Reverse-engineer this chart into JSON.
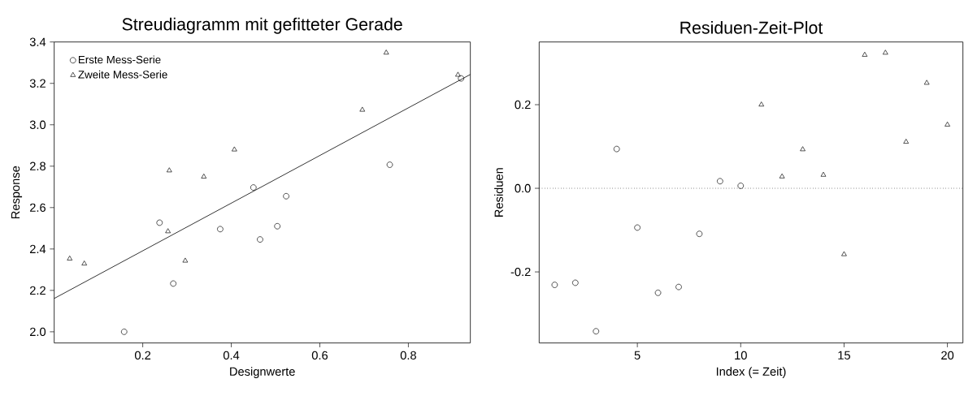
{
  "chart_data": [
    {
      "type": "scatter",
      "title": "Streudiagramm mit gefitteter Gerade",
      "xlabel": "Designwerte",
      "ylabel": "Response",
      "xlim": [
        0.0,
        0.94
      ],
      "ylim": [
        1.946,
        3.4
      ],
      "xticks": [
        0.2,
        0.4,
        0.6,
        0.8
      ],
      "yticks": [
        {
          "value": 2.0,
          "label": "2.0"
        },
        {
          "value": 2.2,
          "label": "2.2"
        },
        {
          "value": 2.4,
          "label": "2.4"
        },
        {
          "value": 2.6,
          "label": "2.6"
        },
        {
          "value": 2.8,
          "label": "2.8"
        },
        {
          "value": 3.0,
          "label": "3.0"
        },
        {
          "value": 3.2,
          "label": "3.2"
        },
        {
          "value": 3.4,
          "label": "3.4"
        }
      ],
      "grid": false,
      "legend": "top left",
      "series": [
        {
          "name": "Erste Mess-Serie",
          "color": "#000000",
          "marker": "circle",
          "x": [
            0.158,
            0.238,
            0.269,
            0.375,
            0.45,
            0.465,
            0.504,
            0.524,
            0.758,
            0.919
          ],
          "values": [
            2.0,
            2.527,
            2.233,
            2.496,
            2.697,
            2.446,
            2.51,
            2.655,
            2.807,
            3.224
          ]
        },
        {
          "name": "Zweite Mess-Serie",
          "color": "#000000",
          "marker": "triangle",
          "x": [
            0.035,
            0.068,
            0.257,
            0.26,
            0.296,
            0.338,
            0.407,
            0.696,
            0.75,
            0.912
          ],
          "values": [
            2.353,
            2.329,
            2.485,
            2.779,
            2.343,
            2.749,
            2.88,
            3.072,
            3.348,
            3.241
          ]
        },
        {
          "type": "line",
          "color": "#000000",
          "marker": "none",
          "line_style": "solid",
          "x": [
            0.0,
            0.94
          ],
          "values": [
            2.161,
            3.243
          ]
        }
      ]
    },
    {
      "type": "scatter",
      "title": "Residuen-Zeit-Plot",
      "xlabel": "Index (= Zeit)",
      "ylabel": "Residuen",
      "xlim": [
        0.25,
        20.75
      ],
      "ylim": [
        -0.37,
        0.35
      ],
      "xticks": [
        5,
        10,
        15,
        20
      ],
      "yticks": [
        -0.2,
        {
          "value": 0.0,
          "label": "0.0"
        },
        0.2
      ],
      "grid": false,
      "ref_lines": [
        {
          "axis": "y",
          "value": 0.0,
          "color": "#000000",
          "line_style": "dotted"
        }
      ],
      "series": [
        {
          "color": "#000000",
          "marker": "circle",
          "x": [
            1,
            2,
            3,
            4,
            5,
            6,
            7,
            8,
            9,
            10
          ],
          "values": [
            -0.231,
            -0.226,
            -0.342,
            0.094,
            -0.094,
            -0.25,
            -0.236,
            -0.109,
            0.017,
            0.006
          ]
        },
        {
          "color": "#000000",
          "marker": "triangle",
          "x": [
            11,
            12,
            13,
            14,
            15,
            16,
            17,
            18,
            19,
            20
          ],
          "values": [
            0.2,
            0.028,
            0.093,
            0.032,
            -0.158,
            0.319,
            0.324,
            0.111,
            0.252,
            0.152
          ]
        }
      ]
    }
  ]
}
